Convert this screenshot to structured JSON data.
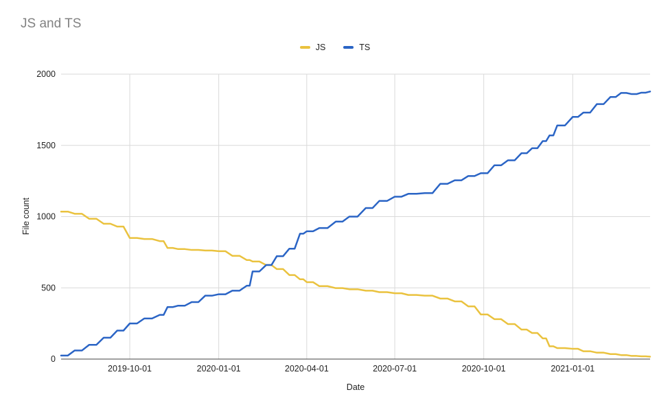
{
  "title": "JS and TS",
  "axes": {
    "y_title": "File count",
    "x_title": "Date"
  },
  "colors": {
    "title_text": "#828282",
    "tick_text": "#1f1f1f",
    "grid": "#d9d9d9",
    "axis": "#424242",
    "js_series": "#eac23e",
    "ts_series": "#2a64c5"
  },
  "chart_data": {
    "type": "line",
    "title": "JS and TS",
    "xlabel": "Date",
    "ylabel": "File count",
    "ylim": [
      0,
      2000
    ],
    "yticks": [
      0,
      500,
      1000,
      1500,
      2000
    ],
    "xticks": [
      "2019-10-01",
      "2020-01-01",
      "2020-04-01",
      "2020-07-01",
      "2020-10-01",
      "2021-01-01"
    ],
    "x_domain": [
      "2019-07-22",
      "2021-03-22"
    ],
    "grid": true,
    "legend_position": "top",
    "x": [
      "2019-07-22",
      "2019-08-05",
      "2019-08-20",
      "2019-09-04",
      "2019-09-18",
      "2019-10-01",
      "2019-10-16",
      "2019-11-01",
      "2019-11-09",
      "2019-11-20",
      "2019-12-04",
      "2019-12-18",
      "2020-01-01",
      "2020-01-15",
      "2020-01-30",
      "2020-02-05",
      "2020-02-19",
      "2020-03-01",
      "2020-03-14",
      "2020-03-25",
      "2020-04-01",
      "2020-04-14",
      "2020-05-01",
      "2020-05-15",
      "2020-06-01",
      "2020-06-15",
      "2020-07-01",
      "2020-07-15",
      "2020-08-01",
      "2020-08-17",
      "2020-09-01",
      "2020-09-15",
      "2020-09-28",
      "2020-10-12",
      "2020-10-26",
      "2020-11-09",
      "2020-11-20",
      "2020-12-01",
      "2020-12-08",
      "2020-12-16",
      "2021-01-01",
      "2021-01-12",
      "2021-01-26",
      "2021-02-09",
      "2021-02-20",
      "2021-03-03",
      "2021-03-13",
      "2021-03-22"
    ],
    "series": [
      {
        "name": "JS",
        "color": "#eac23e",
        "values": [
          1035,
          1020,
          985,
          950,
          930,
          850,
          843,
          828,
          780,
          772,
          766,
          762,
          757,
          725,
          695,
          685,
          660,
          632,
          590,
          560,
          540,
          512,
          498,
          490,
          480,
          470,
          462,
          450,
          445,
          425,
          405,
          370,
          313,
          280,
          246,
          207,
          183,
          145,
          90,
          77,
          72,
          55,
          45,
          35,
          28,
          22,
          19,
          17
        ]
      },
      {
        "name": "TS",
        "color": "#2a64c5",
        "values": [
          25,
          60,
          100,
          150,
          200,
          250,
          285,
          310,
          365,
          375,
          400,
          445,
          455,
          480,
          515,
          615,
          660,
          722,
          775,
          880,
          897,
          920,
          965,
          1000,
          1060,
          1110,
          1140,
          1160,
          1165,
          1230,
          1255,
          1285,
          1305,
          1360,
          1395,
          1445,
          1480,
          1530,
          1570,
          1640,
          1700,
          1730,
          1790,
          1840,
          1868,
          1860,
          1870,
          1878
        ]
      }
    ]
  }
}
